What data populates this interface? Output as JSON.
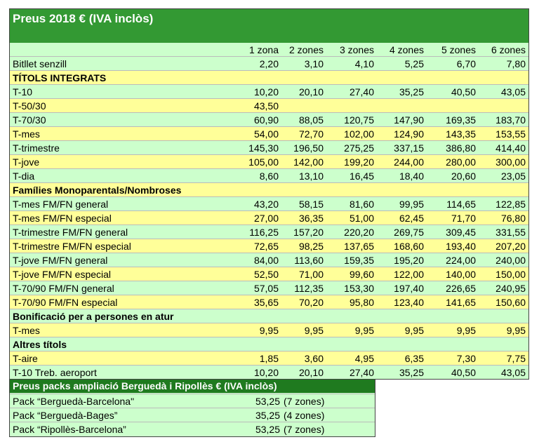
{
  "header": {
    "title": "Preus 2018 € (IVA inclòs)"
  },
  "table": {
    "columns": [
      "1 zona",
      "2 zones",
      "3 zones",
      "4 zones",
      "5 zones",
      "6 zones"
    ],
    "rows": [
      {
        "label": "Bitllet senzill",
        "values": [
          "2,20",
          "3,10",
          "4,10",
          "5,25",
          "6,70",
          "7,80"
        ]
      },
      {
        "section": "TÍTOLS INTEGRATS"
      },
      {
        "label": "T-10",
        "values": [
          "10,20",
          "20,10",
          "27,40",
          "35,25",
          "40,50",
          "43,05"
        ]
      },
      {
        "label": "T-50/30",
        "values": [
          "43,50"
        ]
      },
      {
        "label": "T-70/30",
        "values": [
          "60,90",
          "88,05",
          "120,75",
          "147,90",
          "169,35",
          "183,70"
        ]
      },
      {
        "label": "T-mes",
        "values": [
          "54,00",
          "72,70",
          "102,00",
          "124,90",
          "143,35",
          "153,55"
        ]
      },
      {
        "label": "T-trimestre",
        "values": [
          "145,30",
          "196,50",
          "275,25",
          "337,15",
          "386,80",
          "414,40"
        ]
      },
      {
        "label": "T-jove",
        "values": [
          "105,00",
          "142,00",
          "199,20",
          "244,00",
          "280,00",
          "300,00"
        ]
      },
      {
        "label": "T-dia",
        "values": [
          "8,60",
          "13,10",
          "16,45",
          "18,40",
          "20,60",
          "23,05"
        ]
      },
      {
        "section": "Famílies Monoparentals/Nombroses"
      },
      {
        "label": "T-mes FM/FN general",
        "values": [
          "43,20",
          "58,15",
          "81,60",
          "99,95",
          "114,65",
          "122,85"
        ]
      },
      {
        "label": "T-mes FM/FN especial",
        "values": [
          "27,00",
          "36,35",
          "51,00",
          "62,45",
          "71,70",
          "76,80"
        ]
      },
      {
        "label": "T-trimestre FM/FN general",
        "values": [
          "116,25",
          "157,20",
          "220,20",
          "269,75",
          "309,45",
          "331,55"
        ]
      },
      {
        "label": "T-trimestre FM/FN especial",
        "values": [
          "72,65",
          "98,25",
          "137,65",
          "168,60",
          "193,40",
          "207,20"
        ]
      },
      {
        "label": "T-jove FM/FN general",
        "values": [
          "84,00",
          "113,60",
          "159,35",
          "195,20",
          "224,00",
          "240,00"
        ]
      },
      {
        "label": "T-jove FM/FN especial",
        "values": [
          "52,50",
          "71,00",
          "99,60",
          "122,00",
          "140,00",
          "150,00"
        ]
      },
      {
        "label": "T-70/90 FM/FN general",
        "values": [
          "57,05",
          "112,35",
          "153,30",
          "197,40",
          "226,65",
          "240,95"
        ]
      },
      {
        "label": "T-70/90 FM/FN especial",
        "values": [
          "35,65",
          "70,20",
          "95,80",
          "123,40",
          "141,65",
          "150,60"
        ]
      },
      {
        "section": "Bonificació per a persones en atur"
      },
      {
        "label": "T-mes",
        "values": [
          "9,95",
          "9,95",
          "9,95",
          "9,95",
          "9,95",
          "9,95"
        ]
      },
      {
        "section": "Altres títols"
      },
      {
        "label": "T-aire",
        "values": [
          "1,85",
          "3,60",
          "4,95",
          "6,35",
          "7,30",
          "7,75"
        ]
      },
      {
        "label": "T-10 Treb. aeroport",
        "values": [
          "10,20",
          "20,10",
          "27,40",
          "35,25",
          "40,50",
          "43,05"
        ]
      }
    ]
  },
  "packs": {
    "title": "Preus packs ampliació  Berguedà i Ripollès € (IVA inclòs)",
    "rows": [
      {
        "name": "Pack “Berguedà-Barcelona\"",
        "price": "53,25",
        "zones": "(7 zones)"
      },
      {
        "name": "Pack “Berguedà-Bages”",
        "price": "35,25",
        "zones": "(4 zones)"
      },
      {
        "name": "Pack “Ripollès-Barcelona”",
        "price": "53,25",
        "zones": "(7 zones)"
      }
    ]
  }
}
